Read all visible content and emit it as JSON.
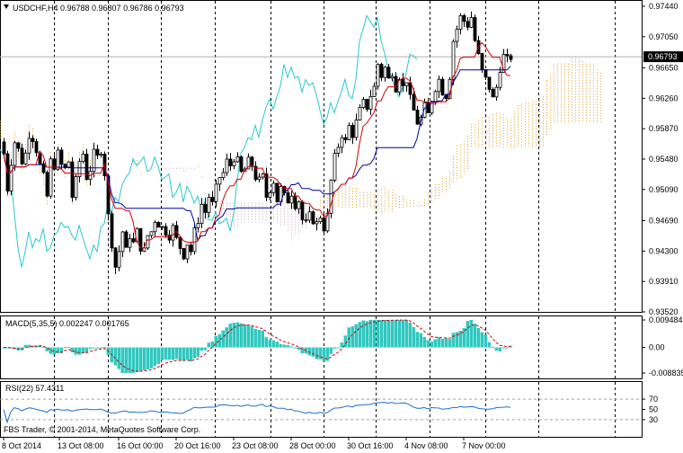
{
  "header": {
    "main_title": "USDCHF,H4  0.96788 0.96807 0.96786 0.96793",
    "macd_title": "MACD(5,35,5) 0.002247 0.001765",
    "rsi_title": "RSI(22) 57.4311",
    "copyright": "FBS Trader, © 2001-2014, MetaQuotes Software Corp."
  },
  "colors": {
    "candle": "#000000",
    "tenkan": "#d40000",
    "kijun": "#0000a0",
    "chikou": "#28c8d0",
    "cloud_up": "#e0a020",
    "cloud_down": "#c8a8c8",
    "macd_hist": "#30c8c0",
    "macd_signal": "#d40000",
    "rsi_line": "#1e6ec8",
    "price_line": "#b0b0b0"
  },
  "chart_data": [
    {
      "type": "candlestick",
      "panel": "main",
      "symbol": "USDCHF",
      "timeframe": "H4",
      "ylim": [
        0.9352,
        0.9744
      ],
      "y_ticks": [
        "0.97440",
        "0.97050",
        "0.96650",
        "0.96260",
        "0.95870",
        "0.95480",
        "0.95090",
        "0.94690",
        "0.94300",
        "0.93910",
        "0.93520"
      ],
      "y_tick_values": [
        0.9744,
        0.9705,
        0.9665,
        0.9626,
        0.9587,
        0.9548,
        0.9509,
        0.9469,
        0.943,
        0.9391,
        0.9352
      ],
      "current_price": 0.96793,
      "current_price_label": "0.96793",
      "x_ticks": [
        "8 Oct 2014",
        "13 Oct 08:00",
        "16 Oct 00:00",
        "20 Oct 16:00",
        "23 Oct 08:00",
        "28 Oct 00:00",
        "30 Oct 16:00",
        "4 Nov 08:00",
        "7 Nov 00:00"
      ],
      "close_path": [
        [
          0,
          0.9585
        ],
        [
          4,
          0.9555
        ],
        [
          8,
          0.951
        ],
        [
          12,
          0.9545
        ],
        [
          16,
          0.957
        ],
        [
          20,
          0.956
        ],
        [
          24,
          0.9545
        ],
        [
          28,
          0.9555
        ],
        [
          32,
          0.958
        ],
        [
          36,
          0.9575
        ],
        [
          40,
          0.956
        ],
        [
          44,
          0.954
        ],
        [
          48,
          0.9525
        ],
        [
          52,
          0.95
        ],
        [
          56,
          0.9545
        ],
        [
          60,
          0.954
        ],
        [
          64,
          0.9555
        ],
        [
          68,
          0.954
        ],
        [
          72,
          0.9535
        ],
        [
          76,
          0.9545
        ],
        [
          80,
          0.95
        ],
        [
          84,
          0.952
        ],
        [
          88,
          0.9545
        ],
        [
          92,
          0.9555
        ],
        [
          96,
          0.9525
        ],
        [
          100,
          0.9535
        ],
        [
          104,
          0.9555
        ],
        [
          108,
          0.955
        ],
        [
          112,
          0.956
        ],
        [
          116,
          0.953
        ],
        [
          120,
          0.9475
        ],
        [
          124,
          0.944
        ],
        [
          128,
          0.941
        ],
        [
          132,
          0.943
        ],
        [
          136,
          0.9455
        ],
        [
          140,
          0.943
        ],
        [
          144,
          0.945
        ],
        [
          148,
          0.944
        ],
        [
          152,
          0.9455
        ],
        [
          156,
          0.9435
        ],
        [
          160,
          0.943
        ],
        [
          164,
          0.945
        ],
        [
          168,
          0.9455
        ],
        [
          172,
          0.947
        ],
        [
          176,
          0.9465
        ],
        [
          180,
          0.946
        ],
        [
          184,
          0.9455
        ],
        [
          188,
          0.945
        ],
        [
          192,
          0.946
        ],
        [
          196,
          0.9445
        ],
        [
          200,
          0.9435
        ],
        [
          204,
          0.9425
        ],
        [
          208,
          0.944
        ],
        [
          212,
          0.943
        ],
        [
          216,
          0.9455
        ],
        [
          220,
          0.947
        ],
        [
          224,
          0.949
        ],
        [
          228,
          0.948
        ],
        [
          232,
          0.95
        ],
        [
          236,
          0.949
        ],
        [
          240,
          0.951
        ],
        [
          244,
          0.9525
        ],
        [
          248,
          0.953
        ],
        [
          252,
          0.9545
        ],
        [
          256,
          0.954
        ],
        [
          260,
          0.955
        ],
        [
          264,
          0.9545
        ],
        [
          268,
          0.953
        ],
        [
          272,
          0.9535
        ],
        [
          276,
          0.9545
        ],
        [
          280,
          0.954
        ],
        [
          284,
          0.9525
        ],
        [
          288,
          0.952
        ],
        [
          292,
          0.9525
        ],
        [
          296,
          0.95
        ],
        [
          300,
          0.951
        ],
        [
          304,
          0.952
        ],
        [
          308,
          0.9495
        ],
        [
          312,
          0.951
        ],
        [
          316,
          0.95
        ],
        [
          320,
          0.9495
        ],
        [
          324,
          0.9505
        ],
        [
          328,
          0.949
        ],
        [
          332,
          0.9495
        ],
        [
          336,
          0.947
        ],
        [
          340,
          0.9465
        ],
        [
          344,
          0.9475
        ],
        [
          348,
          0.947
        ],
        [
          352,
          0.9465
        ],
        [
          356,
          0.9475
        ],
        [
          360,
          0.946
        ],
        [
          364,
          0.9475
        ],
        [
          368,
          0.952
        ],
        [
          372,
          0.955
        ],
        [
          376,
          0.9565
        ],
        [
          380,
          0.958
        ],
        [
          384,
          0.957
        ],
        [
          388,
          0.959
        ],
        [
          392,
          0.958
        ],
        [
          396,
          0.9595
        ],
        [
          400,
          0.961
        ],
        [
          404,
          0.962
        ],
        [
          408,
          0.9615
        ],
        [
          412,
          0.963
        ],
        [
          416,
          0.964
        ],
        [
          420,
          0.967
        ],
        [
          424,
          0.9655
        ],
        [
          428,
          0.9665
        ],
        [
          432,
          0.965
        ],
        [
          436,
          0.966
        ],
        [
          440,
          0.964
        ],
        [
          444,
          0.9655
        ],
        [
          448,
          0.964
        ],
        [
          452,
          0.965
        ],
        [
          456,
          0.9625
        ],
        [
          460,
          0.961
        ],
        [
          464,
          0.9595
        ],
        [
          468,
          0.96
        ],
        [
          472,
          0.9615
        ],
        [
          476,
          0.9605
        ],
        [
          480,
          0.9625
        ],
        [
          484,
          0.964
        ],
        [
          488,
          0.965
        ],
        [
          492,
          0.9635
        ],
        [
          496,
          0.963
        ],
        [
          500,
          0.9655
        ],
        [
          504,
          0.97
        ],
        [
          508,
          0.9715
        ],
        [
          512,
          0.973
        ],
        [
          516,
          0.9725
        ],
        [
          520,
          0.972
        ],
        [
          524,
          0.973
        ],
        [
          528,
          0.97
        ],
        [
          532,
          0.968
        ],
        [
          536,
          0.966
        ],
        [
          540,
          0.965
        ],
        [
          544,
          0.964
        ],
        [
          548,
          0.9625
        ],
        [
          552,
          0.964
        ],
        [
          556,
          0.9665
        ],
        [
          560,
          0.968
        ],
        [
          564,
          0.9675
        ],
        [
          568,
          0.9679
        ]
      ]
    },
    {
      "type": "histogram",
      "panel": "macd",
      "ylim": [
        -0.008835,
        0.009484
      ],
      "y_ticks": [
        "0.009484",
        "0.00",
        "-0.008835"
      ],
      "y_tick_values": [
        0.009484,
        0.0,
        -0.008835
      ]
    },
    {
      "type": "line",
      "panel": "rsi",
      "ylim": [
        0,
        100
      ],
      "y_ticks": [
        "70",
        "50",
        "30"
      ],
      "y_tick_values": [
        70,
        50,
        30
      ],
      "levels": [
        70,
        30
      ],
      "current": 57.4311
    }
  ]
}
